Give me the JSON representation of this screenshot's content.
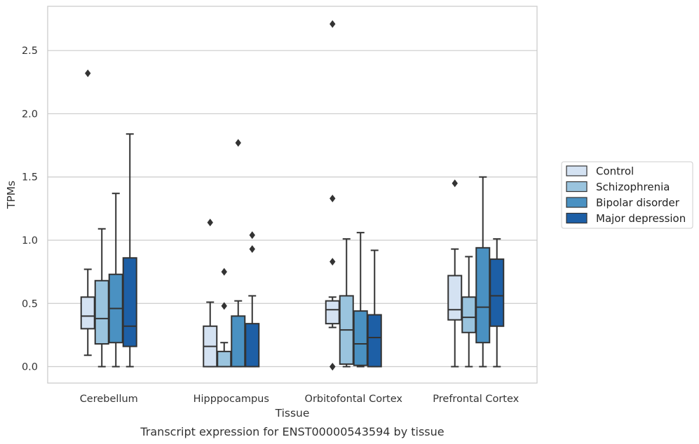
{
  "chart_data": {
    "type": "box",
    "title": "",
    "caption": "Transcript expression for ENST00000543594 by tissue",
    "xlabel": "Tissue",
    "ylabel": "TPMs",
    "ylim": [
      -0.13,
      2.85
    ],
    "yticks": [
      "0.0",
      "0.5",
      "1.0",
      "1.5",
      "2.0",
      "2.5"
    ],
    "grid": "horizontal",
    "legend_position": "right",
    "categories": [
      "Cerebellum",
      "Hipppocampus",
      "Orbitofontal Cortex",
      "Prefrontal Cortex"
    ],
    "colors": {
      "Control": "#d4e2f2",
      "Schizophrenia": "#9ac4de",
      "Bipolar disorder": "#4a91c2",
      "Major depression": "#1d5fa6",
      "stroke": "#333333",
      "grid": "#cccccc",
      "frame": "#cccccc"
    },
    "series": [
      {
        "name": "Control",
        "boxes": [
          {
            "whisker_low": 0.09,
            "q1": 0.3,
            "median": 0.4,
            "q3": 0.55,
            "whisker_high": 0.77,
            "outliers": [
              2.32
            ]
          },
          {
            "whisker_low": 0.0,
            "q1": 0.0,
            "median": 0.16,
            "q3": 0.32,
            "whisker_high": 0.51,
            "outliers": [
              1.14
            ]
          },
          {
            "whisker_low": 0.31,
            "q1": 0.34,
            "median": 0.45,
            "q3": 0.52,
            "whisker_high": 0.55,
            "outliers": [
              2.71,
              1.33,
              0.83,
              0.0,
              0.0
            ]
          },
          {
            "whisker_low": 0.0,
            "q1": 0.37,
            "median": 0.45,
            "q3": 0.72,
            "whisker_high": 0.93,
            "outliers": [
              1.45
            ]
          }
        ]
      },
      {
        "name": "Schizophrenia",
        "boxes": [
          {
            "whisker_low": 0.0,
            "q1": 0.18,
            "median": 0.38,
            "q3": 0.68,
            "whisker_high": 1.09,
            "outliers": []
          },
          {
            "whisker_low": 0.0,
            "q1": 0.0,
            "median": 0.0,
            "q3": 0.12,
            "whisker_high": 0.19,
            "outliers": [
              0.75,
              0.48
            ]
          },
          {
            "whisker_low": 0.0,
            "q1": 0.02,
            "median": 0.29,
            "q3": 0.56,
            "whisker_high": 1.01,
            "outliers": []
          },
          {
            "whisker_low": 0.0,
            "q1": 0.27,
            "median": 0.39,
            "q3": 0.55,
            "whisker_high": 0.87,
            "outliers": []
          }
        ]
      },
      {
        "name": "Bipolar disorder",
        "boxes": [
          {
            "whisker_low": 0.0,
            "q1": 0.19,
            "median": 0.46,
            "q3": 0.73,
            "whisker_high": 1.37,
            "outliers": []
          },
          {
            "whisker_low": 0.0,
            "q1": 0.0,
            "median": 0.0,
            "q3": 0.4,
            "whisker_high": 0.52,
            "outliers": [
              1.77
            ]
          },
          {
            "whisker_low": 0.0,
            "q1": 0.01,
            "median": 0.18,
            "q3": 0.44,
            "whisker_high": 1.06,
            "outliers": []
          },
          {
            "whisker_low": 0.0,
            "q1": 0.19,
            "median": 0.47,
            "q3": 0.94,
            "whisker_high": 1.5,
            "outliers": []
          }
        ]
      },
      {
        "name": "Major depression",
        "boxes": [
          {
            "whisker_low": 0.0,
            "q1": 0.16,
            "median": 0.32,
            "q3": 0.86,
            "whisker_high": 1.84,
            "outliers": []
          },
          {
            "whisker_low": 0.0,
            "q1": 0.0,
            "median": 0.0,
            "q3": 0.34,
            "whisker_high": 0.56,
            "outliers": [
              1.04,
              0.93
            ]
          },
          {
            "whisker_low": 0.0,
            "q1": 0.0,
            "median": 0.23,
            "q3": 0.41,
            "whisker_high": 0.92,
            "outliers": []
          },
          {
            "whisker_low": 0.0,
            "q1": 0.32,
            "median": 0.56,
            "q3": 0.85,
            "whisker_high": 1.01,
            "outliers": []
          }
        ]
      }
    ]
  }
}
